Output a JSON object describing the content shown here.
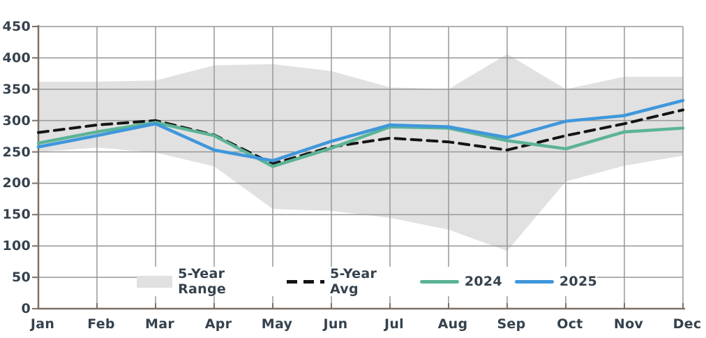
{
  "chart_data": {
    "type": "line",
    "title": "",
    "xlabel": "",
    "ylabel": "",
    "categories": [
      "Jan",
      "Feb",
      "Mar",
      "Apr",
      "May",
      "Jun",
      "Jul",
      "Aug",
      "Sep",
      "Oct",
      "Nov",
      "Dec"
    ],
    "ylim": [
      0,
      450
    ],
    "ytick_step": 50,
    "y_tick_labels": [
      "0",
      "50",
      "100",
      "150",
      "200",
      "250",
      "300",
      "350",
      "400",
      "450"
    ],
    "grid": true,
    "legend_position": "bottom-center",
    "range_band": {
      "name": "5-Year Range",
      "upper": [
        362,
        362,
        364,
        388,
        390,
        379,
        353,
        350,
        406,
        350,
        370,
        370
      ],
      "lower": [
        250,
        257,
        249,
        227,
        159,
        156,
        145,
        126,
        92,
        203,
        228,
        244
      ],
      "color": "#e1e1e1"
    },
    "series": [
      {
        "name": "5-Year Avg",
        "style": "dashed",
        "color": "#141414",
        "values": [
          281,
          293,
          300,
          277,
          231,
          258,
          272,
          266,
          253,
          276,
          295,
          317
        ]
      },
      {
        "name": "2024",
        "style": "solid",
        "color": "#5cb396",
        "values": [
          264,
          282,
          297,
          276,
          227,
          256,
          290,
          288,
          268,
          255,
          282,
          288
        ]
      },
      {
        "name": "2025",
        "style": "solid",
        "color": "#3f97db",
        "values": [
          258,
          276,
          295,
          253,
          236,
          267,
          293,
          290,
          273,
          299,
          308,
          332
        ]
      }
    ],
    "colors": {
      "grid": "#979797",
      "axis": "#7e7065",
      "tick_text": "#35424e",
      "background": "#ffffff"
    }
  }
}
